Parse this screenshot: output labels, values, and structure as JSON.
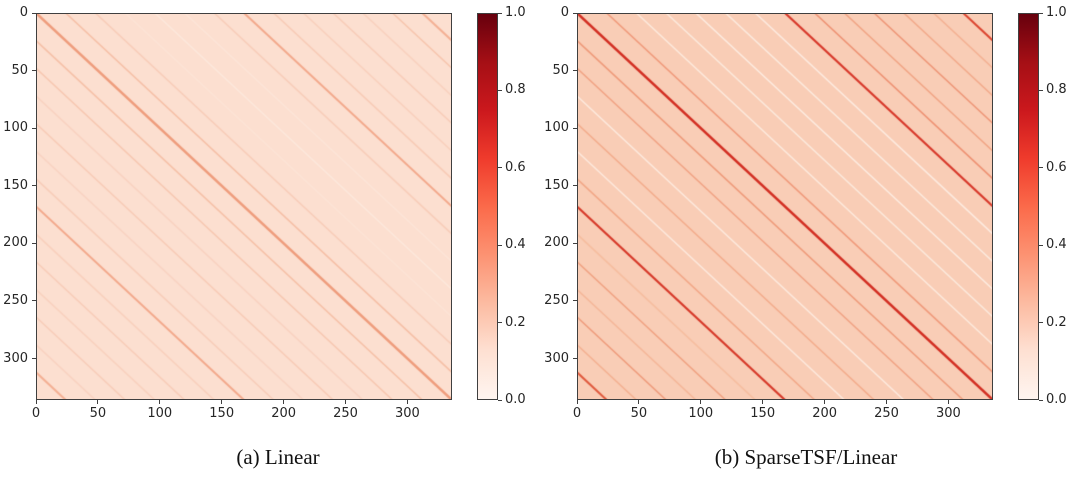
{
  "figure": {
    "background": "#ffffff",
    "text_color": "#262626",
    "spine_color": "#3f3f3f"
  },
  "colormap": {
    "name": "Reds",
    "stops": [
      "#fff5f0",
      "#fee0d2",
      "#fcbba1",
      "#fc9272",
      "#fb6a4a",
      "#ef3b2c",
      "#cb181d",
      "#a50f15",
      "#67000d"
    ]
  },
  "chart_data": [
    {
      "type": "heatmap",
      "title": "(a) Linear",
      "description": "Weight-matrix heatmap with faint periodic diagonal stripes (period 24, stronger diagonals at offsets 0 and ±168)",
      "axis_range": [
        0,
        336
      ],
      "x_ticks": [
        0,
        50,
        100,
        150,
        200,
        250,
        300
      ],
      "y_ticks": [
        0,
        50,
        100,
        150,
        200,
        250,
        300
      ],
      "base_color": "#fcdfd0",
      "period": 24,
      "stripes": [
        {
          "offset": -312,
          "color": "#f4b094",
          "width": 2
        },
        {
          "offset": -288,
          "color": "#f9d2c0",
          "width": 1.5
        },
        {
          "offset": -264,
          "color": "#f8cdb9",
          "width": 1.5
        },
        {
          "offset": -240,
          "color": "#f9d1be",
          "width": 1.5
        },
        {
          "offset": -216,
          "color": "#f8ccb8",
          "width": 1.5
        },
        {
          "offset": -192,
          "color": "#f9d0bd",
          "width": 1.5
        },
        {
          "offset": -168,
          "color": "#f3a98c",
          "width": 2
        },
        {
          "offset": -144,
          "color": "#f8cdb9",
          "width": 1.5
        },
        {
          "offset": -120,
          "color": "#f9d3c2",
          "width": 1.5
        },
        {
          "offset": -96,
          "color": "#f8cbb6",
          "width": 1.5
        },
        {
          "offset": -72,
          "color": "#f9d2c0",
          "width": 1.5
        },
        {
          "offset": -48,
          "color": "#f7c7b0",
          "width": 1.5
        },
        {
          "offset": -24,
          "color": "#f6c0a7",
          "width": 1.5
        },
        {
          "offset": 0,
          "color": "#ef9d7d",
          "width": 2.5
        },
        {
          "offset": 24,
          "color": "#f6bfa6",
          "width": 1.5
        },
        {
          "offset": 48,
          "color": "#f8ccb8",
          "width": 1.5
        },
        {
          "offset": 72,
          "color": "#fce4d6",
          "width": 1.5
        },
        {
          "offset": 96,
          "color": "#fde8dc",
          "width": 1.5
        },
        {
          "offset": 120,
          "color": "#fce5d8",
          "width": 1.5
        },
        {
          "offset": 144,
          "color": "#f8cdb9",
          "width": 1.5
        },
        {
          "offset": 168,
          "color": "#f3a98c",
          "width": 2
        },
        {
          "offset": 192,
          "color": "#f8cbb6",
          "width": 1.5
        },
        {
          "offset": 216,
          "color": "#f9d0bd",
          "width": 1.5
        },
        {
          "offset": 240,
          "color": "#f8ccb8",
          "width": 1.5
        },
        {
          "offset": 264,
          "color": "#f9d1be",
          "width": 1.5
        },
        {
          "offset": 288,
          "color": "#f7c5ad",
          "width": 1.5
        },
        {
          "offset": 312,
          "color": "#f4b094",
          "width": 2
        }
      ],
      "colorbar": {
        "min": 0.0,
        "max": 1.0,
        "tick_values": [
          0.0,
          0.2,
          0.4,
          0.6,
          0.8,
          1.0
        ],
        "tick_labels": [
          "0.0",
          "0.2",
          "0.4",
          "0.6",
          "0.8",
          "1.0"
        ]
      }
    },
    {
      "type": "heatmap",
      "title": "(b) SparseTSF/Linear",
      "description": "Weight-matrix heatmap with pronounced periodic diagonal stripes (period 24, strong red diagonals at offsets 0, ±168, ±312, light stripes between)",
      "axis_range": [
        0,
        336
      ],
      "x_ticks": [
        0,
        50,
        100,
        150,
        200,
        250,
        300
      ],
      "y_ticks": [
        0,
        50,
        100,
        150,
        200,
        250,
        300
      ],
      "base_color": "#f9cdb6",
      "period": 24,
      "stripes": [
        {
          "offset": -312,
          "color": "#e05a3e",
          "width": 2
        },
        {
          "offset": -288,
          "color": "#f4b091",
          "width": 1.5
        },
        {
          "offset": -264,
          "color": "#ef9b7b",
          "width": 1.5
        },
        {
          "offset": -240,
          "color": "#f5b698",
          "width": 1.5
        },
        {
          "offset": -216,
          "color": "#f0a181",
          "width": 1.5
        },
        {
          "offset": -192,
          "color": "#f6bd9f",
          "width": 1.5
        },
        {
          "offset": -168,
          "color": "#d73a2a",
          "width": 2.2
        },
        {
          "offset": -144,
          "color": "#f2a787",
          "width": 1.5
        },
        {
          "offset": -120,
          "color": "#fde9dd",
          "width": 1.5
        },
        {
          "offset": -96,
          "color": "#f3ab8b",
          "width": 1.5
        },
        {
          "offset": -72,
          "color": "#fdeade",
          "width": 1.5
        },
        {
          "offset": -48,
          "color": "#f1a283",
          "width": 1.5
        },
        {
          "offset": -24,
          "color": "#ef9a7a",
          "width": 1.5
        },
        {
          "offset": 0,
          "color": "#d32f23",
          "width": 2.5
        },
        {
          "offset": 24,
          "color": "#f0997a",
          "width": 1.5
        },
        {
          "offset": 48,
          "color": "#fdeadd",
          "width": 1.5
        },
        {
          "offset": 72,
          "color": "#fceadd",
          "width": 1.5
        },
        {
          "offset": 96,
          "color": "#fdece1",
          "width": 1.5
        },
        {
          "offset": 120,
          "color": "#fcebdf",
          "width": 1.5
        },
        {
          "offset": 144,
          "color": "#fdebe0",
          "width": 1.5
        },
        {
          "offset": 168,
          "color": "#d8392b",
          "width": 2.2
        },
        {
          "offset": 192,
          "color": "#ee9172",
          "width": 1.5
        },
        {
          "offset": 216,
          "color": "#f1a484",
          "width": 1.5
        },
        {
          "offset": 240,
          "color": "#ee9576",
          "width": 1.5
        },
        {
          "offset": 264,
          "color": "#f2a98a",
          "width": 1.5
        },
        {
          "offset": 288,
          "color": "#f4b092",
          "width": 1.5
        },
        {
          "offset": 312,
          "color": "#dc4530",
          "width": 2
        }
      ],
      "colorbar": {
        "min": 0.0,
        "max": 1.0,
        "tick_values": [
          0.0,
          0.2,
          0.4,
          0.6,
          0.8,
          1.0
        ],
        "tick_labels": [
          "0.0",
          "0.2",
          "0.4",
          "0.6",
          "0.8",
          "1.0"
        ]
      }
    }
  ]
}
